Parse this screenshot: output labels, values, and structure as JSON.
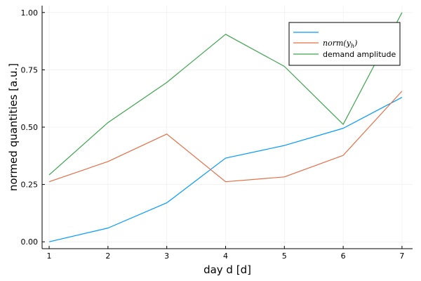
{
  "chart_data": {
    "type": "line",
    "title": "",
    "xlabel": "day d [d]",
    "ylabel": "normed quantities [a.u.]",
    "x": [
      1,
      2,
      3,
      4,
      5,
      6,
      7
    ],
    "xlim": [
      0.88,
      7.18
    ],
    "ylim": [
      -0.03,
      1.03
    ],
    "xticks": [
      1,
      2,
      3,
      4,
      5,
      6,
      7
    ],
    "yticks": [
      0.0,
      0.25,
      0.5,
      0.75,
      1.0
    ],
    "ytick_labels": [
      "0.00",
      "0.25",
      "0.50",
      "0.75",
      "1.00"
    ],
    "grid": true,
    "legend_position": "top-right",
    "series": [
      {
        "name": "",
        "color": "#009AFA",
        "values": [
          0.0,
          0.06,
          0.17,
          0.365,
          0.42,
          0.495,
          0.63
        ]
      },
      {
        "name": "norm(y",
        "name_subscript": "h",
        "name_suffix": ")",
        "color": "#E36F47",
        "values": [
          0.262,
          0.35,
          0.47,
          0.262,
          0.283,
          0.377,
          0.657
        ]
      },
      {
        "name": "demand amplitude",
        "color": "#3EA44E",
        "values": [
          0.292,
          0.52,
          0.695,
          0.905,
          0.765,
          0.512,
          1.0
        ]
      }
    ]
  }
}
